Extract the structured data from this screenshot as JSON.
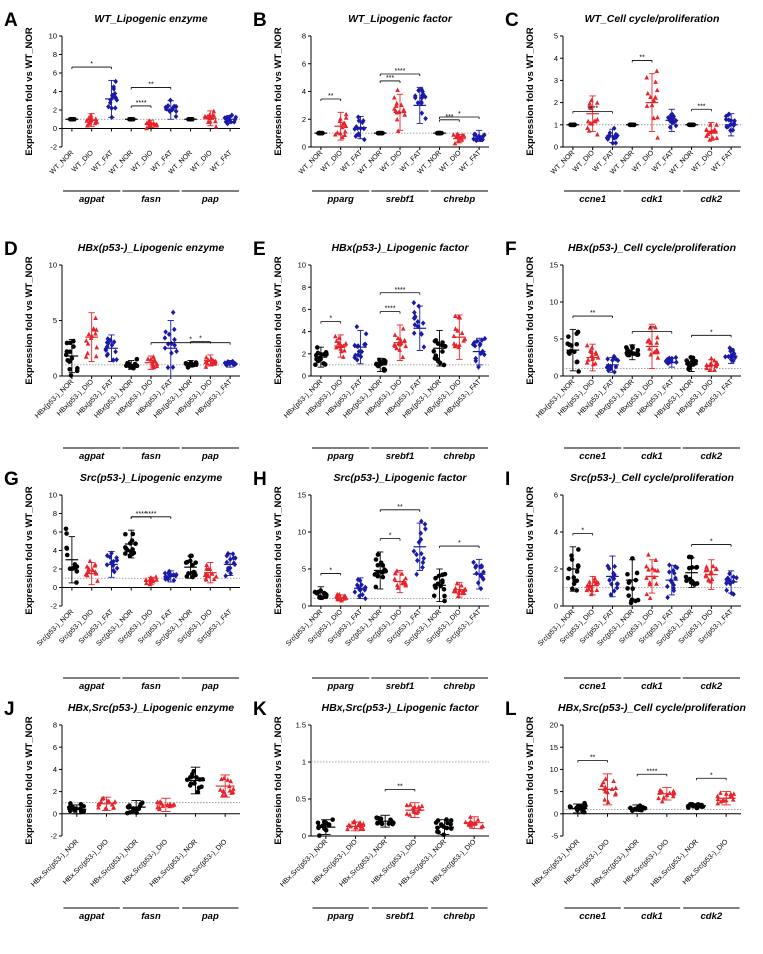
{
  "colors": {
    "NOR": "#000000",
    "DIO": "#e8232a",
    "FAT": "#1a1aa6"
  },
  "chart_data": [
    {
      "label": "A",
      "type": "scatter",
      "title": "WT_Lipogenic enzyme",
      "ylabel": "Expression fold vs WT_NOR",
      "ylim": [
        -2,
        10
      ],
      "yticks": [
        -2,
        0,
        2,
        4,
        6,
        8,
        10
      ],
      "refline": 1,
      "categories": [
        "WT_NOR",
        "WT_DIO",
        "WT_FAT",
        "WT_NOR",
        "WT_DIO",
        "WT_FAT",
        "WT_NOR",
        "WT_DIO",
        "WT_FAT"
      ],
      "groups": [
        "NOR",
        "DIO",
        "FAT",
        "NOR",
        "DIO",
        "FAT",
        "NOR",
        "DIO",
        "FAT"
      ],
      "genes": [
        {
          "name": "agpat",
          "start": 0,
          "end": 2
        },
        {
          "name": "fasn",
          "start": 3,
          "end": 5
        },
        {
          "name": "pap",
          "start": 6,
          "end": 8
        }
      ],
      "means": [
        1.0,
        0.9,
        3.2,
        1.0,
        0.5,
        2.0,
        1.0,
        1.1,
        1.0
      ],
      "sds": [
        0,
        0.7,
        2.0,
        0,
        0.4,
        1.0,
        0,
        0.8,
        0.4
      ],
      "sig": [
        {
          "a": 0,
          "b": 2,
          "text": "*"
        },
        {
          "a": 3,
          "b": 4,
          "text": "****"
        },
        {
          "a": 3,
          "b": 5,
          "text": "**"
        }
      ]
    },
    {
      "label": "B",
      "type": "scatter",
      "title": "WT_Lipogenic factor",
      "ylabel": "Expression fold vs WT_NOR",
      "ylim": [
        0,
        8
      ],
      "yticks": [
        0,
        2,
        4,
        6,
        8
      ],
      "refline": 1,
      "categories": [
        "WT_NOR",
        "WT_DIO",
        "WT_FAT",
        "WT_NOR",
        "WT_DIO",
        "WT_FAT",
        "WT_NOR",
        "WT_DIO",
        "WT_FAT"
      ],
      "groups": [
        "NOR",
        "DIO",
        "FAT",
        "NOR",
        "DIO",
        "FAT",
        "NOR",
        "DIO",
        "FAT"
      ],
      "genes": [
        {
          "name": "pparg",
          "start": 0,
          "end": 2
        },
        {
          "name": "srebf1",
          "start": 3,
          "end": 5
        },
        {
          "name": "chrebp",
          "start": 6,
          "end": 8
        }
      ],
      "means": [
        1.0,
        1.5,
        1.4,
        1.0,
        2.5,
        3.0,
        1.0,
        0.6,
        0.8
      ],
      "sds": [
        0,
        1.0,
        0.8,
        0,
        1.3,
        1.3,
        0,
        0.3,
        0.4
      ],
      "sig": [
        {
          "a": 0,
          "b": 1,
          "text": "**"
        },
        {
          "a": 3,
          "b": 4,
          "text": "***"
        },
        {
          "a": 3,
          "b": 5,
          "text": "****"
        },
        {
          "a": 6,
          "b": 7,
          "text": "***"
        },
        {
          "a": 6,
          "b": 8,
          "text": "*"
        }
      ]
    },
    {
      "label": "C",
      "type": "scatter",
      "title": "WT_Cell cycle/proliferation",
      "ylabel": "Expression fold vs WT_NOR",
      "ylim": [
        0,
        5
      ],
      "yticks": [
        0,
        1,
        2,
        3,
        4,
        5
      ],
      "refline": 1,
      "categories": [
        "WT_NOR",
        "WT_DIO",
        "WT_FAT",
        "WT_NOR",
        "WT_DIO",
        "WT_FAT",
        "WT_NOR",
        "WT_DIO",
        "WT_FAT"
      ],
      "groups": [
        "NOR",
        "DIO",
        "FAT",
        "NOR",
        "DIO",
        "FAT",
        "NOR",
        "DIO",
        "FAT"
      ],
      "genes": [
        {
          "name": "ccne1",
          "start": 0,
          "end": 2
        },
        {
          "name": "cdk1",
          "start": 3,
          "end": 5
        },
        {
          "name": "cdk2",
          "start": 6,
          "end": 8
        }
      ],
      "means": [
        1.0,
        1.5,
        0.5,
        1.0,
        2.0,
        1.2,
        1.0,
        0.7,
        1.0
      ],
      "sds": [
        0,
        0.8,
        0.3,
        0,
        1.3,
        0.5,
        0,
        0.4,
        0.5
      ],
      "sig": [
        {
          "a": 0,
          "b": 2,
          "text": "****"
        },
        {
          "a": 3,
          "b": 4,
          "text": "**"
        },
        {
          "a": 6,
          "b": 7,
          "text": "***"
        }
      ]
    },
    {
      "label": "D",
      "type": "scatter",
      "title": "HBx(p53-)_Lipogenic enzyme",
      "ylabel": "Expression fold vs WT_NOR",
      "ylim": [
        0,
        10
      ],
      "yticks": [
        0,
        5,
        10
      ],
      "refline": 1,
      "categories": [
        "HBx(p53-)_NOR",
        "HBx(p53-)_DIO",
        "HBx(p53-)_FAT",
        "HBx(p53-)_NOR",
        "HBx(p53-)_DIO",
        "HBx(p53-)_FAT",
        "HBx(p53-)_NOR",
        "HBx(p53-)_DIO",
        "HBx(p53-)_FAT"
      ],
      "groups": [
        "NOR",
        "DIO",
        "FAT",
        "NOR",
        "DIO",
        "FAT",
        "NOR",
        "DIO",
        "FAT"
      ],
      "genes": [
        {
          "name": "agpat",
          "start": 0,
          "end": 2
        },
        {
          "name": "fasn",
          "start": 3,
          "end": 5
        },
        {
          "name": "pap",
          "start": 6,
          "end": 8
        }
      ],
      "means": [
        1.8,
        3.5,
        2.5,
        1.0,
        1.2,
        2.5,
        1.1,
        1.4,
        1.1
      ],
      "sds": [
        1.5,
        2.2,
        1.2,
        0.4,
        0.6,
        2.5,
        0.3,
        0.5,
        0.3
      ],
      "sig": [
        {
          "a": 4,
          "b": 8,
          "text": "*"
        },
        {
          "a": 6,
          "b": 7,
          "text": "*"
        }
      ]
    },
    {
      "label": "E",
      "type": "scatter",
      "title": "HBx(p53-)_Lipogenic factor",
      "ylabel": "Expression fold vs WT_NOR",
      "ylim": [
        0,
        10
      ],
      "yticks": [
        0,
        2,
        4,
        6,
        8,
        10
      ],
      "refline": 1,
      "categories": [
        "HBx(p53-)_NOR",
        "HBx(p53-)_DIO",
        "HBx(p53-)_FAT",
        "HBx(p53-)_NOR",
        "HBx(p53-)_DIO",
        "HBx(p53-)_FAT",
        "HBx(p53-)_NOR",
        "HBx(p53-)_DIO",
        "HBx(p53-)_FAT"
      ],
      "groups": [
        "NOR",
        "DIO",
        "FAT",
        "NOR",
        "DIO",
        "FAT",
        "NOR",
        "DIO",
        "FAT"
      ],
      "genes": [
        {
          "name": "pparg",
          "start": 0,
          "end": 2
        },
        {
          "name": "srebf1",
          "start": 3,
          "end": 5
        },
        {
          "name": "chrebp",
          "start": 6,
          "end": 8
        }
      ],
      "means": [
        1.7,
        2.7,
        2.6,
        1.0,
        3.0,
        4.3,
        2.5,
        3.5,
        2.2
      ],
      "sds": [
        0.9,
        1.0,
        1.5,
        0.6,
        1.6,
        2.0,
        1.6,
        2.0,
        1.2
      ],
      "sig": [
        {
          "a": 0,
          "b": 1,
          "text": "*"
        },
        {
          "a": 3,
          "b": 4,
          "text": "****"
        },
        {
          "a": 3,
          "b": 5,
          "text": "****"
        }
      ]
    },
    {
      "label": "F",
      "type": "scatter",
      "title": "HBx(p53-)_Cell cycle/proliferation",
      "ylabel": "Expression fold vs WT_NOR",
      "ylim": [
        0,
        15
      ],
      "yticks": [
        0,
        5,
        10,
        15
      ],
      "refline": 1,
      "categories": [
        "HBx(p53-)_NOR",
        "HBx(p53-)_DIO",
        "HBx(p53-)_FAT",
        "HBx(p53-)_NOR",
        "HBx(p53-)_DIO",
        "HBx(p53-)_FAT",
        "HBx(p53-)_NOR",
        "HBx(p53-)_DIO",
        "HBx(p53-)_FAT"
      ],
      "groups": [
        "NOR",
        "DIO",
        "FAT",
        "NOR",
        "DIO",
        "FAT",
        "NOR",
        "DIO",
        "FAT"
      ],
      "genes": [
        {
          "name": "ccne1",
          "start": 0,
          "end": 2
        },
        {
          "name": "cdk1",
          "start": 3,
          "end": 5
        },
        {
          "name": "cdk2",
          "start": 6,
          "end": 8
        }
      ],
      "means": [
        3.5,
        2.5,
        1.5,
        3.2,
        4.0,
        1.8,
        1.6,
        1.4,
        2.7
      ],
      "sds": [
        2.8,
        1.8,
        1.0,
        1.0,
        3.0,
        0.6,
        1.0,
        0.8,
        1.0
      ],
      "sig": [
        {
          "a": 0,
          "b": 2,
          "text": "**"
        },
        {
          "a": 3,
          "b": 5,
          "text": "**"
        },
        {
          "a": 6,
          "b": 8,
          "text": "*"
        }
      ]
    },
    {
      "label": "G",
      "type": "scatter",
      "title": "Src(p53-)_Lipogenic enzyme",
      "ylabel": "Expression fold vs WT_NOR",
      "ylim": [
        -2,
        10
      ],
      "yticks": [
        -2,
        0,
        2,
        4,
        6,
        8,
        10
      ],
      "refline": 1,
      "categories": [
        "Src(p53-)_NOR",
        "Src(p53-)_DIO",
        "Src(p53-)_FAT",
        "Src(p53-)_NOR",
        "Src(p53-)_DIO",
        "Src(p53-)_FAT",
        "Src(p53-)_NOR",
        "Src(p53-)_DIO",
        "Src(p53-)_FAT"
      ],
      "groups": [
        "NOR",
        "DIO",
        "FAT",
        "NOR",
        "DIO",
        "FAT",
        "NOR",
        "DIO",
        "FAT"
      ],
      "genes": [
        {
          "name": "agpat",
          "start": 0,
          "end": 2
        },
        {
          "name": "fasn",
          "start": 3,
          "end": 5
        },
        {
          "name": "pap",
          "start": 6,
          "end": 8
        }
      ],
      "means": [
        3.0,
        1.5,
        2.5,
        4.7,
        0.7,
        1.2,
        2.2,
        1.6,
        2.5
      ],
      "sds": [
        2.5,
        1.2,
        1.4,
        1.5,
        0.4,
        0.6,
        1.2,
        1.1,
        1.2
      ],
      "sig": [
        {
          "a": 3,
          "b": 4,
          "text": "****"
        },
        {
          "a": 3,
          "b": 5,
          "text": "****"
        }
      ]
    },
    {
      "label": "H",
      "type": "scatter",
      "title": "Src(p53-)_Lipogenic factor",
      "ylabel": "Expression fold vs WT_NOR",
      "ylim": [
        0,
        15
      ],
      "yticks": [
        0,
        5,
        10,
        15
      ],
      "refline": 1,
      "categories": [
        "Src(p53-)_NOR",
        "Src(p53-)_DIO",
        "Src(p53-)_FAT",
        "Src(p53-)_NOR",
        "Src(p53-)_DIO",
        "Src(p53-)_FAT",
        "Src(p53-)_NOR",
        "Src(p53-)_DIO",
        "Src(p53-)_FAT"
      ],
      "groups": [
        "NOR",
        "DIO",
        "FAT",
        "NOR",
        "DIO",
        "FAT",
        "NOR",
        "DIO",
        "FAT"
      ],
      "genes": [
        {
          "name": "pparg",
          "start": 0,
          "end": 2
        },
        {
          "name": "srebf1",
          "start": 3,
          "end": 5
        },
        {
          "name": "chrebp",
          "start": 6,
          "end": 8
        }
      ],
      "means": [
        1.8,
        1.1,
        2.4,
        4.8,
        3.3,
        8.0,
        2.8,
        2.2,
        4.3
      ],
      "sds": [
        0.8,
        0.4,
        1.4,
        2.5,
        1.5,
        3.2,
        2.2,
        1.0,
        2.0
      ],
      "sig": [
        {
          "a": 0,
          "b": 1,
          "text": "*"
        },
        {
          "a": 3,
          "b": 4,
          "text": "*"
        },
        {
          "a": 3,
          "b": 5,
          "text": "**"
        },
        {
          "a": 6,
          "b": 8,
          "text": "*"
        }
      ]
    },
    {
      "label": "I",
      "type": "scatter",
      "title": "Src(p53-)_Cell cycle/proliferation",
      "ylabel": "Expression fold vs WT_NOR",
      "ylim": [
        0,
        6
      ],
      "yticks": [
        0,
        2,
        4,
        6
      ],
      "refline": 1,
      "categories": [
        "Src(p53-)_NOR",
        "Src(p53-)_DIO",
        "Src(p53-)_FAT",
        "Src(p53-)_NOR",
        "Src(p53-)_DIO",
        "Src(p53-)_FAT",
        "Src(p53-)_NOR",
        "Src(p53-)_DIO",
        "Src(p53-)_FAT"
      ],
      "groups": [
        "NOR",
        "DIO",
        "FAT",
        "NOR",
        "DIO",
        "FAT",
        "NOR",
        "DIO",
        "FAT"
      ],
      "genes": [
        {
          "name": "ccne1",
          "start": 0,
          "end": 2
        },
        {
          "name": "cdk1",
          "start": 3,
          "end": 5
        },
        {
          "name": "cdk2",
          "start": 6,
          "end": 8
        }
      ],
      "means": [
        2.0,
        1.1,
        1.6,
        1.4,
        1.6,
        1.4,
        1.8,
        1.7,
        1.3
      ],
      "sds": [
        1.2,
        0.5,
        1.1,
        1.1,
        0.9,
        0.8,
        0.8,
        0.8,
        0.6
      ],
      "sig": [
        {
          "a": 0,
          "b": 1,
          "text": "*"
        },
        {
          "a": 6,
          "b": 8,
          "text": "*"
        }
      ]
    },
    {
      "label": "J",
      "type": "scatter",
      "title": "HBx,Src(p53-)_Lipogenic enzyme",
      "ylabel": "Expression fold vs WT_NOR",
      "ylim": [
        -2,
        8
      ],
      "yticks": [
        -2,
        0,
        2,
        4,
        6,
        8
      ],
      "refline": 1,
      "categories": [
        "HBx,Src(p53-)_NOR",
        "HBx,Src(p53-)_DIO",
        "HBx,Src(p53-)_NOR",
        "HBx,Src(p53-)_DIO",
        "HBx,Src(p53-)_NOR",
        "HBx,Src(p53-)_DIO"
      ],
      "groups": [
        "NOR",
        "DIO",
        "NOR",
        "DIO",
        "NOR",
        "DIO"
      ],
      "genes": [
        {
          "name": "agpat",
          "start": 0,
          "end": 1
        },
        {
          "name": "fasn",
          "start": 2,
          "end": 3
        },
        {
          "name": "pap",
          "start": 4,
          "end": 5
        }
      ],
      "means": [
        0.4,
        0.9,
        0.6,
        0.8,
        3.0,
        2.5
      ],
      "sds": [
        0.4,
        0.6,
        0.6,
        0.6,
        1.2,
        1.0
      ],
      "sig": []
    },
    {
      "label": "K",
      "type": "scatter",
      "title": "HBx,Src(p53-)_Lipogenic factor",
      "ylabel": "Expression fold vs WT_NOR",
      "ylim": [
        0,
        1.5
      ],
      "yticks": [
        0.0,
        0.5,
        1.0,
        1.5
      ],
      "refline": 1,
      "categories": [
        "HBx,Src(p53-)_NOR",
        "HBx,Src(p53-)_DIO",
        "HBx,Src(p53-)_NOR",
        "HBx,Src(p53-)_DIO",
        "HBx,Src(p53-)_NOR",
        "HBx,Src(p53-)_DIO"
      ],
      "groups": [
        "NOR",
        "DIO",
        "NOR",
        "DIO",
        "NOR",
        "DIO"
      ],
      "genes": [
        {
          "name": "pparg",
          "start": 0,
          "end": 1
        },
        {
          "name": "srebf1",
          "start": 2,
          "end": 3
        },
        {
          "name": "chrebp",
          "start": 4,
          "end": 5
        }
      ],
      "means": [
        0.12,
        0.13,
        0.2,
        0.35,
        0.12,
        0.18
      ],
      "sds": [
        0.1,
        0.06,
        0.08,
        0.1,
        0.1,
        0.08
      ],
      "sig": [
        {
          "a": 2,
          "b": 3,
          "text": "**"
        }
      ]
    },
    {
      "label": "L",
      "type": "scatter",
      "title": "HBx,Src(p53-)_Cell cycle/proliferation",
      "ylabel": "Expression fold vs WT_NOR",
      "ylim": [
        -5,
        20
      ],
      "yticks": [
        -5,
        0,
        5,
        10,
        15,
        20
      ],
      "refline": 1,
      "categories": [
        "HBx,Src(p53-)_NOR",
        "HBx,Src(p53-)_DIO",
        "HBx,Src(p53-)_NOR",
        "HBx,Src(p53-)_DIO",
        "HBx,Src(p53-)_NOR",
        "HBx,Src(p53-)_DIO"
      ],
      "groups": [
        "NOR",
        "DIO",
        "NOR",
        "DIO",
        "NOR",
        "DIO"
      ],
      "genes": [
        {
          "name": "ccne1",
          "start": 0,
          "end": 1
        },
        {
          "name": "cdk1",
          "start": 2,
          "end": 3
        },
        {
          "name": "cdk2",
          "start": 4,
          "end": 5
        }
      ],
      "means": [
        1.2,
        5.5,
        1.3,
        4.5,
        1.8,
        3.5
      ],
      "sds": [
        1.0,
        3.5,
        0.7,
        1.4,
        0.5,
        1.5
      ],
      "sig": [
        {
          "a": 0,
          "b": 1,
          "text": "**"
        },
        {
          "a": 2,
          "b": 3,
          "text": "****"
        },
        {
          "a": 4,
          "b": 5,
          "text": "*"
        }
      ]
    }
  ]
}
